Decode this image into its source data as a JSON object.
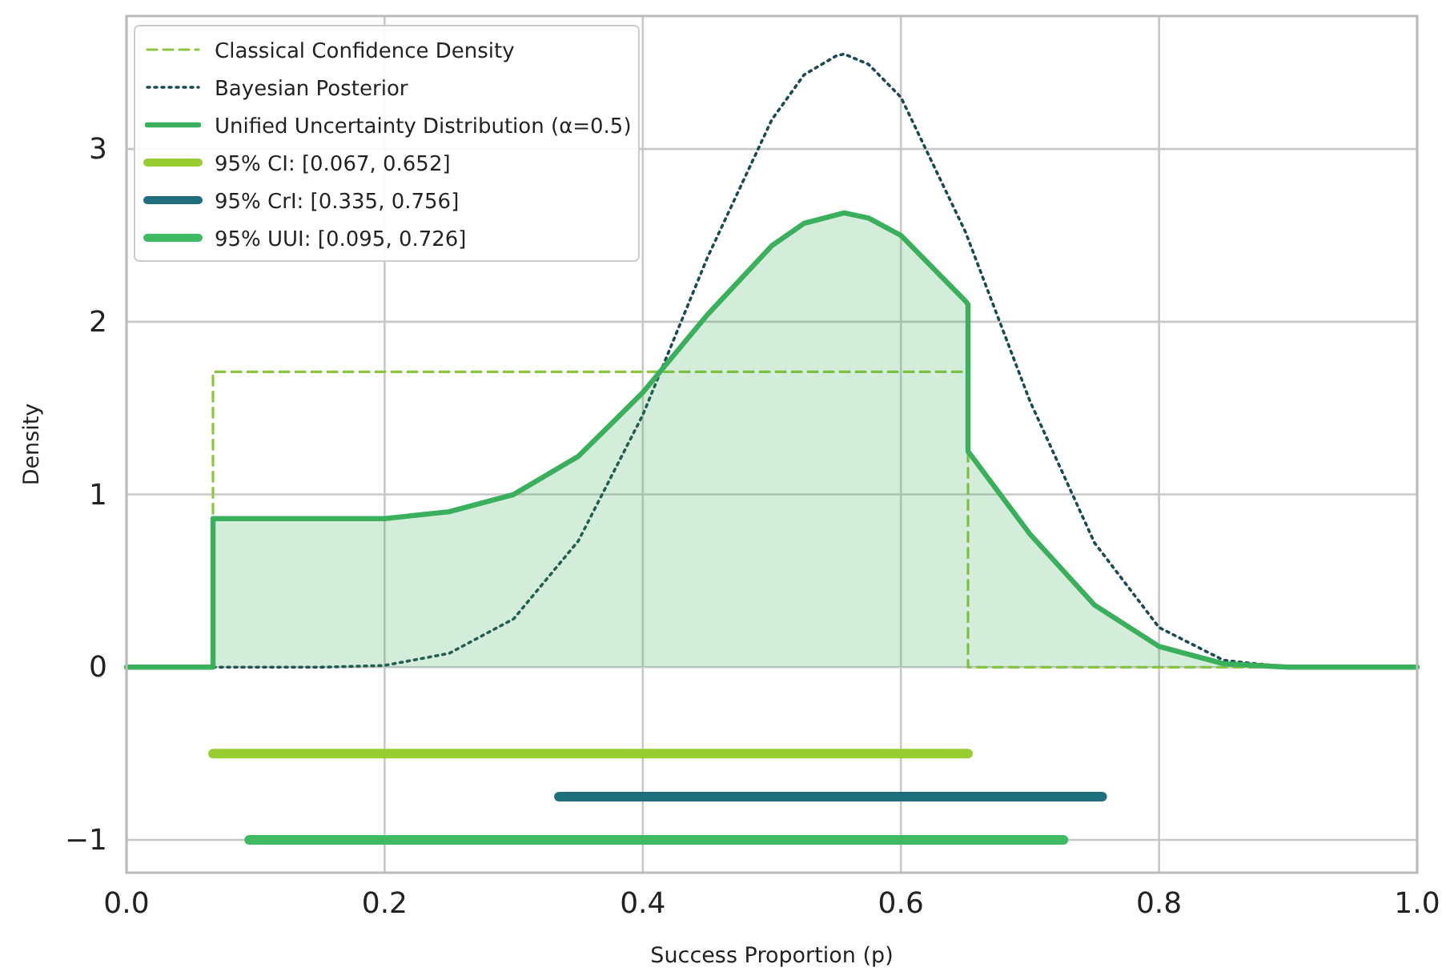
{
  "chart_data": {
    "type": "line",
    "xlabel": "Success Proportion (p)",
    "ylabel": "Density",
    "xlim": [
      0,
      1
    ],
    "ylim": [
      -1.19,
      3.77
    ],
    "xticks": [
      {
        "value": 0,
        "label": "0.0"
      },
      {
        "value": 0.2,
        "label": "0.2"
      },
      {
        "value": 0.4,
        "label": "0.4"
      },
      {
        "value": 0.6,
        "label": "0.6"
      },
      {
        "value": 0.8,
        "label": "0.8"
      },
      {
        "value": 1,
        "label": "1.0"
      }
    ],
    "yticks": [
      {
        "value": -1,
        "label": "−1"
      },
      0,
      1,
      2,
      3
    ],
    "grid": true,
    "legend": "top left",
    "series": [
      {
        "name": "Classical Confidence Density",
        "line_style": "dashed",
        "color": "#8cc63f",
        "x": [
          0,
          0.067,
          0.067,
          0.652,
          0.652,
          1
        ],
        "values": [
          0,
          0,
          1.71,
          1.71,
          0,
          0
        ]
      },
      {
        "name": "Bayesian Posterior",
        "line_style": "dotted",
        "color": "#1b4a4f",
        "x": [
          0,
          0.1,
          0.15,
          0.2,
          0.25,
          0.3,
          0.35,
          0.4,
          0.45,
          0.5,
          0.525,
          0.55,
          0.556,
          0.575,
          0.6,
          0.65,
          0.7,
          0.75,
          0.8,
          0.85,
          0.9,
          0.95,
          1
        ],
        "values": [
          0,
          0,
          0,
          0.01,
          0.08,
          0.28,
          0.73,
          1.46,
          2.37,
          3.17,
          3.43,
          3.54,
          3.55,
          3.49,
          3.3,
          2.52,
          1.54,
          0.72,
          0.23,
          0.04,
          0,
          0,
          0
        ]
      },
      {
        "name": "Unified Uncertainty Distribution (α=0.5)",
        "type": "area",
        "line_style": "solid",
        "color": "#3aaf5c",
        "x": [
          0,
          0.067,
          0.067,
          0.15,
          0.2,
          0.25,
          0.3,
          0.35,
          0.4,
          0.45,
          0.5,
          0.525,
          0.556,
          0.575,
          0.6,
          0.65,
          0.652,
          0.652,
          0.7,
          0.75,
          0.8,
          0.85,
          0.9,
          1
        ],
        "values": [
          0,
          0,
          0.86,
          0.86,
          0.86,
          0.9,
          1,
          1.22,
          1.59,
          2.04,
          2.44,
          2.57,
          2.63,
          2.6,
          2.5,
          2.12,
          2.1,
          1.25,
          0.77,
          0.36,
          0.12,
          0.02,
          0,
          0
        ]
      },
      {
        "name": "95% CI: [0.067, 0.652]",
        "line_style": "solid",
        "color": "#9acd32",
        "x": [
          0.067,
          0.652
        ],
        "values": [
          -0.5,
          -0.5
        ]
      },
      {
        "name": "95% CrI: [0.335, 0.756]",
        "line_style": "solid",
        "color": "#1f6e7c",
        "x": [
          0.335,
          0.756
        ],
        "values": [
          -0.75,
          -0.75
        ]
      },
      {
        "name": "95% UUI: [0.095, 0.726]",
        "line_style": "solid",
        "color": "#3dba62",
        "x": [
          0.095,
          0.726
        ],
        "values": [
          -1,
          -1
        ]
      }
    ]
  }
}
